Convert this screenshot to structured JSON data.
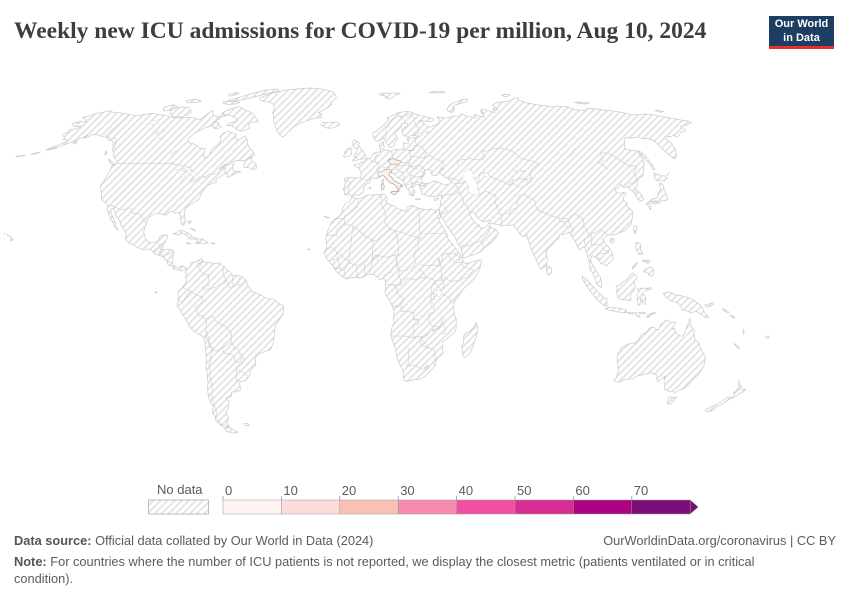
{
  "header": {
    "title": "Weekly new ICU admissions for COVID-19 per million, Aug 10, 2024"
  },
  "logo": {
    "line1": "Our World",
    "line2": "in Data",
    "bg_color": "#1d3d63",
    "accent_color": "#e62e2a"
  },
  "legend": {
    "no_data_label": "No data",
    "ticks": [
      "0",
      "10",
      "20",
      "30",
      "40",
      "50",
      "60",
      "70"
    ],
    "bins": [
      {
        "range": "0-10",
        "color": "#fff5f3"
      },
      {
        "range": "10-20",
        "color": "#fbdcda"
      },
      {
        "range": "20-30",
        "color": "#f9c1b5"
      },
      {
        "range": "30-40",
        "color": "#f78cb1"
      },
      {
        "range": "40-50",
        "color": "#f2509e"
      },
      {
        "range": "50-60",
        "color": "#d62e95"
      },
      {
        "range": "60-70",
        "color": "#ac0481"
      },
      {
        "range": "70+",
        "color": "#7a0d76"
      }
    ]
  },
  "map": {
    "no_data_fill": "hatched",
    "countries_with_data": [
      {
        "name": "Italy",
        "bin": "0-10",
        "color": "#fdf1ea"
      },
      {
        "name": "Czechia",
        "bin": "0-10",
        "color": "#fdf1ea"
      }
    ]
  },
  "footer": {
    "source_label": "Data source:",
    "source_text": " Official data collated by Our World in Data (2024)",
    "link_text": "OurWorldinData.org/coronavirus | CC BY",
    "note_label": "Note:",
    "note_text": " For countries where the number of ICU patients is not reported, we display the closest metric (patients ventilated or in critical condition)."
  },
  "chart_data": {
    "type": "choropleth_map",
    "title": "Weekly new ICU admissions for COVID-19 per million, Aug 10, 2024",
    "date": "Aug 10, 2024",
    "metric": "Weekly new ICU admissions for COVID-19 per million",
    "projection": "Robinson",
    "legend_bins": [
      0,
      10,
      20,
      30,
      40,
      50,
      60,
      70
    ],
    "legend_open_ended": true,
    "countries_with_data": [
      "Italy",
      "Czechia"
    ],
    "all_other_countries": "No data"
  }
}
